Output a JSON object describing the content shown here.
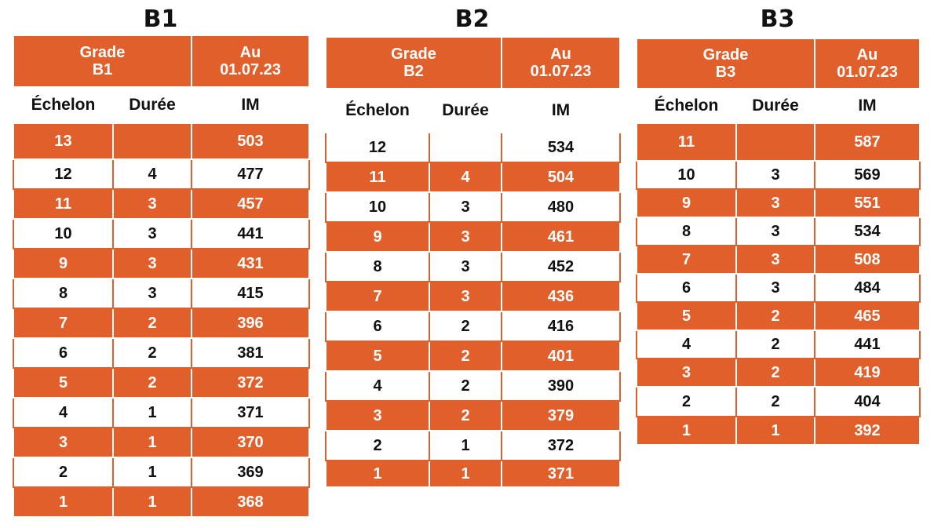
{
  "panels": [
    {
      "title": "B1",
      "grade_label": "Grade",
      "grade_code": "B1",
      "date_label": "Au",
      "date_value": "01.07.23",
      "columns": [
        "Échelon",
        "Durée",
        "IM"
      ],
      "rows": [
        {
          "echelon": "13",
          "duree": "",
          "im": "503"
        },
        {
          "echelon": "12",
          "duree": "4",
          "im": "477"
        },
        {
          "echelon": "11",
          "duree": "3",
          "im": "457"
        },
        {
          "echelon": "10",
          "duree": "3",
          "im": "441"
        },
        {
          "echelon": "9",
          "duree": "3",
          "im": "431"
        },
        {
          "echelon": "8",
          "duree": "3",
          "im": "415"
        },
        {
          "echelon": "7",
          "duree": "2",
          "im": "396"
        },
        {
          "echelon": "6",
          "duree": "2",
          "im": "381"
        },
        {
          "echelon": "5",
          "duree": "2",
          "im": "372"
        },
        {
          "echelon": "4",
          "duree": "1",
          "im": "371"
        },
        {
          "echelon": "3",
          "duree": "1",
          "im": "370"
        },
        {
          "echelon": "2",
          "duree": "1",
          "im": "369"
        },
        {
          "echelon": "1",
          "duree": "1",
          "im": "368"
        }
      ]
    },
    {
      "title": "B2",
      "grade_label": "Grade",
      "grade_code": "B2",
      "date_label": "Au",
      "date_value": "01.07.23",
      "columns": [
        "Échelon",
        "Durée",
        "IM"
      ],
      "rows": [
        {
          "echelon": "12",
          "duree": "",
          "im": "534"
        },
        {
          "echelon": "11",
          "duree": "4",
          "im": "504"
        },
        {
          "echelon": "10",
          "duree": "3",
          "im": "480"
        },
        {
          "echelon": "9",
          "duree": "3",
          "im": "461"
        },
        {
          "echelon": "8",
          "duree": "3",
          "im": "452"
        },
        {
          "echelon": "7",
          "duree": "3",
          "im": "436"
        },
        {
          "echelon": "6",
          "duree": "2",
          "im": "416"
        },
        {
          "echelon": "5",
          "duree": "2",
          "im": "401"
        },
        {
          "echelon": "4",
          "duree": "2",
          "im": "390"
        },
        {
          "echelon": "3",
          "duree": "2",
          "im": "379"
        },
        {
          "echelon": "2",
          "duree": "1",
          "im": "372"
        },
        {
          "echelon": "1",
          "duree": "1",
          "im": "371"
        }
      ]
    },
    {
      "title": "B3",
      "grade_label": "Grade",
      "grade_code": "B3",
      "date_label": "Au",
      "date_value": "01.07.23",
      "columns": [
        "Échelon",
        "Durée",
        "IM"
      ],
      "rows": [
        {
          "echelon": "11",
          "duree": "",
          "im": "587"
        },
        {
          "echelon": "10",
          "duree": "3",
          "im": "569"
        },
        {
          "echelon": "9",
          "duree": "3",
          "im": "551"
        },
        {
          "echelon": "8",
          "duree": "3",
          "im": "534"
        },
        {
          "echelon": "7",
          "duree": "3",
          "im": "508"
        },
        {
          "echelon": "6",
          "duree": "3",
          "im": "484"
        },
        {
          "echelon": "5",
          "duree": "2",
          "im": "465"
        },
        {
          "echelon": "4",
          "duree": "2",
          "im": "441"
        },
        {
          "echelon": "3",
          "duree": "2",
          "im": "419"
        },
        {
          "echelon": "2",
          "duree": "2",
          "im": "404"
        },
        {
          "echelon": "1",
          "duree": "1",
          "im": "392"
        }
      ]
    }
  ],
  "colors": {
    "accent": "#e05f2b",
    "row_alt": "#ffffff"
  }
}
